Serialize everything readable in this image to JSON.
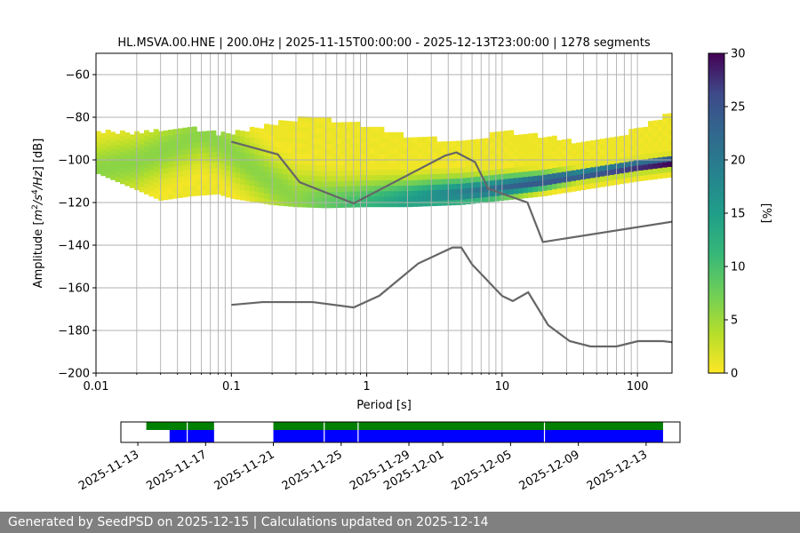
{
  "chart_data": [
    {
      "type": "heatmap",
      "title": "HL.MSVA.00.HNE | 200.0Hz | 2025-11-15T00:00:00 - 2025-12-13T23:00:00 | 1278 segments",
      "xlabel": "Period [s]",
      "ylabel": "Amplitude [m²/s⁴/Hz] [dB]",
      "x_scale": "log",
      "xlim": [
        0.01,
        180
      ],
      "ylim": [
        -200,
        -50
      ],
      "x_ticks": [
        0.01,
        0.1,
        1,
        10,
        100
      ],
      "x_tick_labels": [
        "0.01",
        "0.1",
        "1",
        "10",
        "100"
      ],
      "y_ticks": [
        -200,
        -180,
        -160,
        -140,
        -120,
        -100,
        -80,
        -60
      ],
      "y_tick_labels": [
        "−200",
        "−180",
        "−160",
        "−140",
        "−120",
        "−100",
        "−80",
        "−60"
      ],
      "grid": true,
      "colorbar": {
        "label": "[%]",
        "range": [
          0,
          30
        ],
        "ticks": [
          0,
          5,
          10,
          15,
          20,
          25,
          30
        ],
        "colormap": "viridis_r"
      },
      "mode_curve": {
        "period": [
          0.01,
          0.02,
          0.03,
          0.05,
          0.06,
          0.08,
          0.1,
          0.15,
          0.2,
          0.3,
          0.5,
          0.7,
          1,
          2,
          3,
          5,
          8,
          10,
          20,
          50,
          100,
          180
        ],
        "db": [
          -106,
          -102,
          -97,
          -91,
          -89,
          -92,
          -97,
          -106,
          -112,
          -119,
          -121.5,
          -122,
          -121.5,
          -119.5,
          -118,
          -116.5,
          -115,
          -114,
          -111,
          -107,
          -104,
          -102
        ]
      },
      "upper_envelope": {
        "period": [
          0.01,
          0.02,
          0.03,
          0.05,
          0.06,
          0.1,
          0.2,
          0.3,
          0.5,
          1,
          2,
          5,
          10,
          20,
          30,
          50,
          100,
          150,
          180
        ],
        "db": [
          -88,
          -89,
          -87,
          -86,
          -88,
          -89,
          -84,
          -82,
          -82,
          -85,
          -90,
          -93,
          -88,
          -90,
          -92,
          -93,
          -87,
          -81,
          -80
        ]
      },
      "lower_envelope": {
        "period": [
          0.01,
          0.02,
          0.03,
          0.05,
          0.08,
          0.1,
          0.2,
          0.3,
          0.5,
          1,
          2,
          5,
          10,
          20,
          50,
          100,
          180
        ],
        "db": [
          -106,
          -114,
          -119,
          -117,
          -116,
          -118,
          -121,
          -122,
          -122.5,
          -122,
          -122,
          -121,
          -119,
          -117,
          -113,
          -110,
          -108
        ]
      },
      "reference_curves": [
        {
          "period": [
            0.1,
            0.17,
            0.4,
            0.8,
            1.24,
            2.4,
            4.3,
            5.0,
            6.0,
            10.0,
            12.0,
            15.6,
            21.9,
            31.6,
            45.0,
            70.0,
            101.0,
            154.0,
            180.0
          ],
          "db": [
            -168.0,
            -166.7,
            -166.7,
            -169.2,
            -163.7,
            -148.6,
            -141.1,
            -141.1,
            -149.0,
            -163.8,
            -166.2,
            -162.1,
            -177.5,
            -185.0,
            -187.5,
            -187.5,
            -185.0,
            -185.0,
            -185.5
          ]
        },
        {
          "period": [
            0.1,
            0.22,
            0.32,
            0.8,
            3.8,
            4.6,
            6.3,
            7.9,
            15.4,
            20.0,
            180.0
          ],
          "db": [
            -91.5,
            -97.4,
            -110.5,
            -120.4,
            -98.0,
            -96.5,
            -101.0,
            -113.5,
            -120.0,
            -138.5,
            -129.0
          ]
        }
      ]
    },
    {
      "type": "timeline",
      "tick_labels": [
        "2025-11-13",
        "2025-11-17",
        "2025-11-21",
        "2025-11-25",
        "2025-11-29",
        "2025-12-01",
        "2025-12-05",
        "2025-12-09",
        "2025-12-13"
      ],
      "green_segments": [
        [
          "2025-11-13T12:00",
          "2025-11-17T12:00"
        ],
        [
          "2025-11-21T00:00",
          "2025-12-14T00:00"
        ]
      ],
      "blue_segments": [
        [
          "2025-11-14T21:00",
          "2025-11-17T12:00"
        ],
        [
          "2025-11-21T00:00",
          "2025-12-14T00:00"
        ]
      ],
      "gaps": [
        "2025-11-15T22:00",
        "2025-11-24T00:00",
        "2025-11-26T00:00",
        "2025-12-07T00:00"
      ],
      "colors": {
        "green": "#008000",
        "blue": "#0000ff"
      }
    }
  ],
  "footer": {
    "text": "Generated by SeedPSD on 2025-12-15 | Calculations updated on 2025-12-14"
  }
}
